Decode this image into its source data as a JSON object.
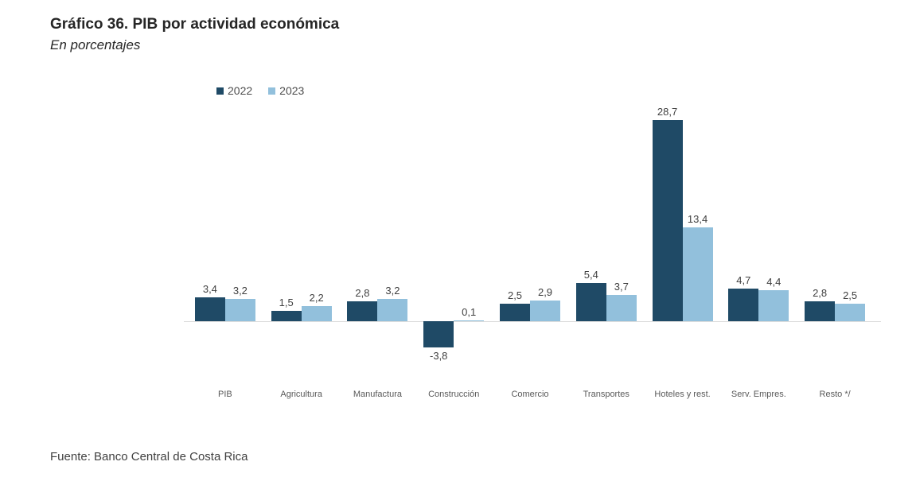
{
  "title": "Gráfico 36. PIB por actividad económica",
  "subtitle": "En porcentajes",
  "source": "Fuente: Banco Central de Costa Rica",
  "colors": {
    "series_2022": "#1F4A66",
    "series_2023": "#92C0DC",
    "axis_line": "#DCDCDC",
    "value_label": "#404040",
    "category_label": "#595959"
  },
  "chart_data": {
    "type": "bar",
    "title": "Gráfico 36. PIB por actividad económica",
    "subtitle": "En porcentajes",
    "categories": [
      "PIB",
      "Agricultura",
      "Manufactura",
      "Construcción",
      "Comercio",
      "Transportes",
      "Hoteles y rest.",
      "Serv. Empres.",
      "Resto */"
    ],
    "series": [
      {
        "name": "2022",
        "color": "#1F4A66",
        "values": [
          3.4,
          1.5,
          2.8,
          -3.8,
          2.5,
          5.4,
          28.7,
          4.7,
          2.8
        ],
        "display_values": [
          "3,4",
          "1,5",
          "2,8",
          "-3,8",
          "2,5",
          "5,4",
          "28,7",
          "4,7",
          "2,8"
        ]
      },
      {
        "name": "2023",
        "color": "#92C0DC",
        "values": [
          3.2,
          2.2,
          3.2,
          0.1,
          2.9,
          3.7,
          13.4,
          4.4,
          2.5
        ],
        "display_values": [
          "3,2",
          "2,2",
          "3,2",
          "0,1",
          "2,9",
          "3,7",
          "13,4",
          "4,4",
          "2,5"
        ]
      }
    ],
    "xlabel": "",
    "ylabel": "",
    "ylim": [
      -5,
      30
    ],
    "y_axis_visible": false,
    "grid": false,
    "data_labels": true,
    "legend_position": "top"
  }
}
